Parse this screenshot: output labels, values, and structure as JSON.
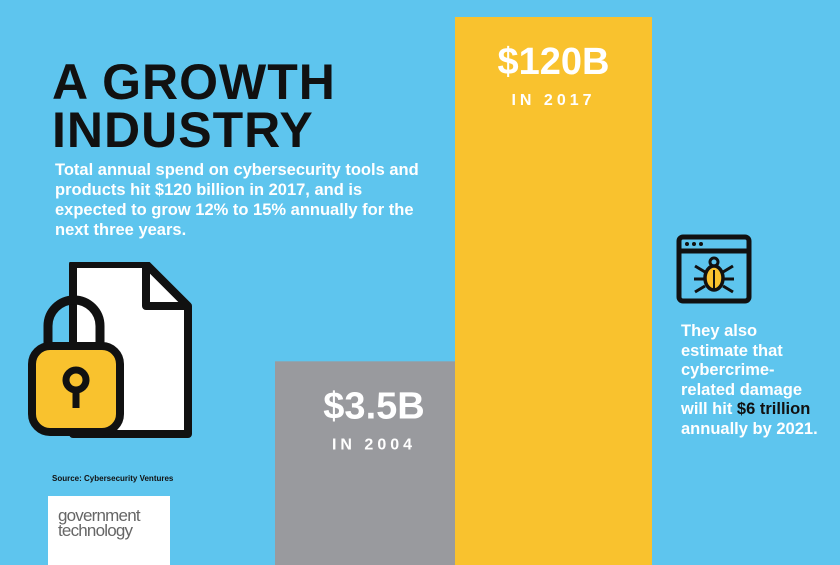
{
  "title": {
    "line1": "A GROWTH",
    "line2": "INDUSTRY"
  },
  "description": "Total annual spend on cybersecurity tools and products hit $120 billion in 2017, and is expected to grow 12% to 15% annually for the next three years.",
  "chart_data": {
    "type": "bar",
    "title": "A GROWTH INDUSTRY",
    "categories": [
      "IN 2004",
      "IN 2017"
    ],
    "values": [
      3.5,
      120
    ],
    "value_labels": [
      "$3.5B",
      "$120B"
    ],
    "unit": "billion USD",
    "colors": [
      "#999a9e",
      "#f9c22e"
    ],
    "ylim": [
      0,
      120
    ],
    "xlabel": "",
    "ylabel": ""
  },
  "note": {
    "before": "They also estimate that cybercrime-related damage will hit ",
    "highlight": "$6 trillion",
    "after": " annually by 2021."
  },
  "source": "Source: Cybersecurity Ventures",
  "logo": {
    "line1": "government",
    "line2": "technology"
  },
  "icons": {
    "document": "locked-file-icon",
    "bug": "browser-bug-icon"
  },
  "colors": {
    "background": "#5ec5ee",
    "accent": "#f9c22e",
    "gray": "#999a9e",
    "text_dark": "#111111"
  }
}
